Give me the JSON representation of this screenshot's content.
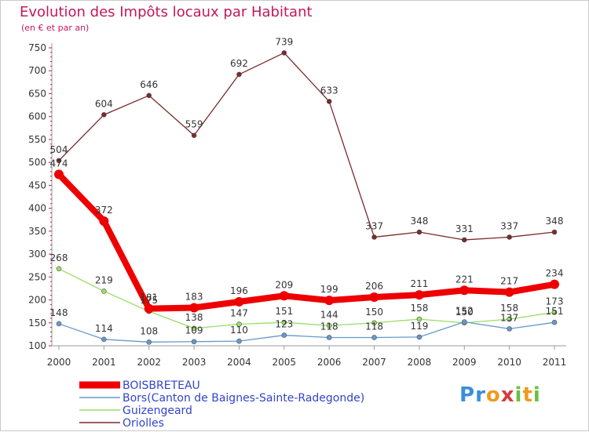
{
  "title": "Evolution des Impôts locaux par Habitant",
  "subtitle": "(en € et par an)",
  "logo": {
    "text": "Proxiti",
    "colors": [
      "#3b8fd9",
      "#3b8fd9",
      "#f09a1f",
      "#d43d3d",
      "#6cbf3f",
      "#f09a1f",
      "#6cbf3f"
    ]
  },
  "chart_data": {
    "type": "line",
    "title": "Evolution des Impôts locaux par Habitant",
    "subtitle": "(en € et par an)",
    "xlabel": "",
    "ylabel": "",
    "ylim": [
      100,
      750
    ],
    "yticks": [
      100,
      150,
      200,
      250,
      300,
      350,
      400,
      450,
      500,
      550,
      600,
      650,
      700,
      750
    ],
    "grid": false,
    "legend": "bottom-left",
    "x": [
      "2000",
      "2001",
      "2002",
      "2003",
      "2004",
      "2005",
      "2006",
      "2007",
      "2008",
      "2009",
      "2010",
      "2011"
    ],
    "series": [
      {
        "name": "Orioles",
        "label": "Oriolles",
        "color": "#7a2a2a",
        "values": [
          504,
          604,
          646,
          559,
          692,
          739,
          633,
          337,
          348,
          331,
          337,
          348
        ]
      },
      {
        "name": "Guizengeard",
        "label": "Guizengeard",
        "color": "#99dd66",
        "values": [
          268,
          219,
          175,
          138,
          147,
          151,
          144,
          150,
          158,
          150,
          158,
          173
        ]
      },
      {
        "name": "Bors",
        "label": "Bors(Canton de Baignes-Sainte-Radegonde)",
        "color": "#6699cc",
        "values": [
          148,
          114,
          108,
          109,
          110,
          123,
          118,
          118,
          119,
          152,
          137,
          151
        ]
      },
      {
        "name": "BOISBRETEAU",
        "label": "BOISBRETEAU",
        "color": "#ee0000",
        "values": [
          474,
          372,
          181,
          183,
          196,
          209,
          199,
          206,
          211,
          221,
          217,
          234
        ]
      }
    ],
    "legend_order": [
      "BOISBRETEAU",
      "Bors",
      "Guizengeard",
      "Orioles"
    ]
  }
}
